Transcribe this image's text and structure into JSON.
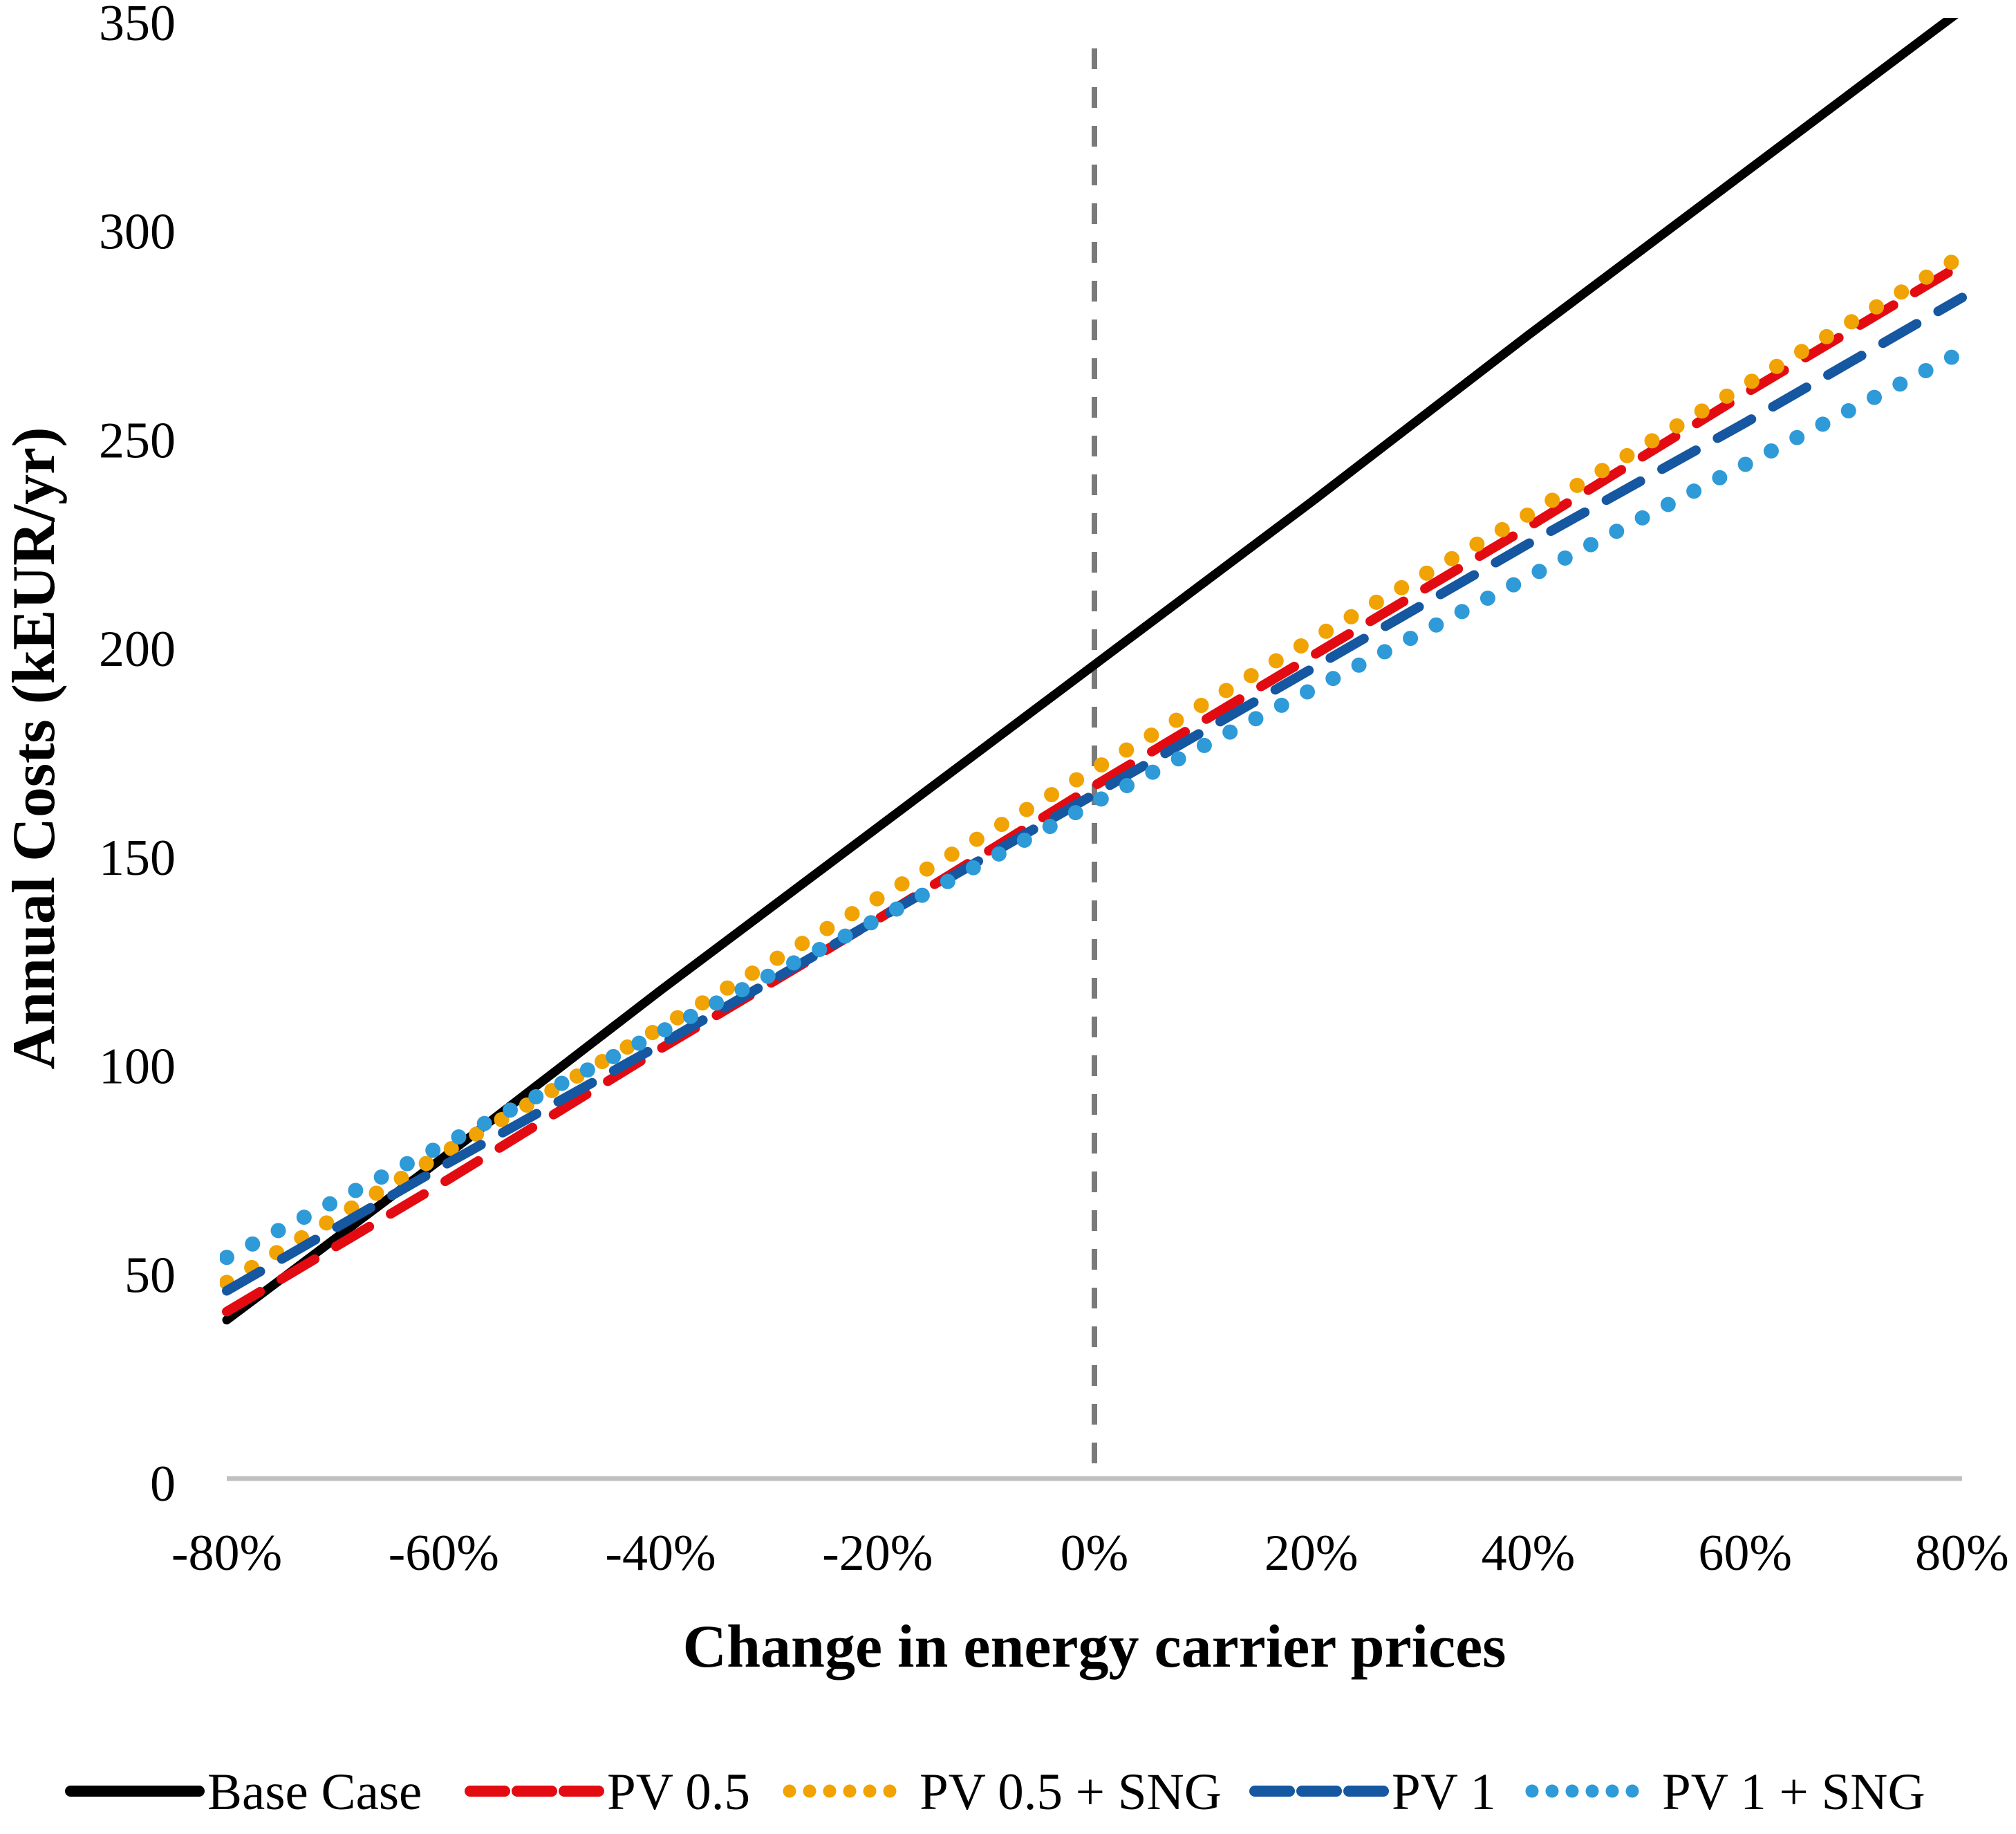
{
  "chart_data": {
    "type": "line",
    "title": "",
    "xlabel": "Change in energy carrier prices",
    "ylabel": "Annual Costs (kEUR/yr)",
    "x_tick_labels": [
      "-80%",
      "-60%",
      "-40%",
      "-20%",
      "0%",
      "20%",
      "40%",
      "60%",
      "80%"
    ],
    "x_values_percent": [
      -80,
      -60,
      -40,
      -20,
      0,
      20,
      40,
      60,
      80
    ],
    "y_ticks": [
      0,
      50,
      100,
      150,
      200,
      250,
      300,
      350
    ],
    "ylim": [
      0,
      350
    ],
    "xlim_percent": [
      -80,
      80
    ],
    "grid": false,
    "legend_position": "bottom",
    "axis_color": "#c0c0c0",
    "reference_line": {
      "x_percent": 0,
      "style": "dashed",
      "color": "#7a7a7a"
    },
    "series": [
      {
        "name": "Base Case",
        "color": "#000000",
        "style": "solid",
        "values": [
          38,
          77,
          117,
          156,
          195,
          234,
          274,
          313,
          352
        ]
      },
      {
        "name": "PV 0.5",
        "color": "#e30b12",
        "style": "dashed",
        "values": [
          40,
          71,
          103,
          134,
          166,
          197,
          228,
          260,
          291
        ]
      },
      {
        "name": "PV 0.5 + SNG",
        "color": "#f0a302",
        "style": "dotted",
        "values": [
          47,
          78,
          108,
          139,
          170,
          201,
          231,
          262,
          293
        ]
      },
      {
        "name": "PV 1",
        "color": "#1557a0",
        "style": "dashed",
        "values": [
          45,
          75,
          104,
          134,
          164,
          194,
          224,
          253,
          283
        ]
      },
      {
        "name": "PV 1 + SNG",
        "color": "#2e9ad7",
        "style": "dotted",
        "values": [
          53,
          80,
          107,
          134,
          162,
          189,
          216,
          243,
          270
        ]
      }
    ]
  }
}
